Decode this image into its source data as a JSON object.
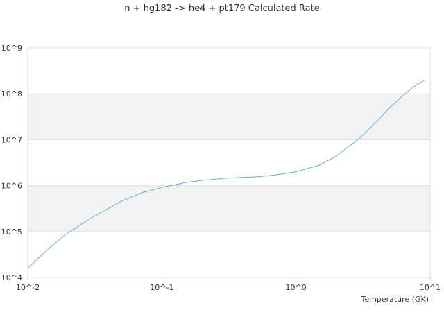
{
  "chart_data": {
    "type": "line",
    "title": "n + hg182 -> he4 + pt179 Calculated Rate",
    "x_label": "Temperature (GK)",
    "x": [
      0.01,
      0.015,
      0.02,
      0.03,
      0.05,
      0.07,
      0.1,
      0.15,
      0.2,
      0.3,
      0.5,
      0.7,
      1,
      1.5,
      2,
      3,
      4,
      5,
      6,
      7,
      8,
      9
    ],
    "series": [
      {
        "color": "#6aa8e0",
        "values": [
          16000,
          48000,
          95000,
          200000,
          460000,
          690000,
          910000,
          1170000,
          1300000,
          1450000,
          1550000,
          1700000,
          2000000,
          2800000,
          4400000,
          11000000,
          25000000,
          50000000,
          81000000,
          120000000,
          160000000,
          195000000
        ]
      }
    ],
    "x_log": true,
    "y_log": true,
    "xlim": [
      0.01,
      10
    ],
    "ylim": [
      10000,
      1000000000
    ],
    "xticks": [
      {
        "value": 0.01,
        "label": "10^-2"
      },
      {
        "value": 0.1,
        "label": "10^-1"
      },
      {
        "value": 1,
        "label": "10^0"
      },
      {
        "value": 10,
        "label": "10^1"
      }
    ],
    "yticks": [
      {
        "value": 10000,
        "label": "10^4"
      },
      {
        "value": 100000,
        "label": "10^5"
      },
      {
        "value": 1000000,
        "label": "10^6"
      },
      {
        "value": 10000000,
        "label": "10^7"
      },
      {
        "value": 100000000,
        "label": "10^8"
      },
      {
        "value": 1000000000,
        "label": "10^9"
      }
    ],
    "band_color": "#f2f2f2"
  }
}
